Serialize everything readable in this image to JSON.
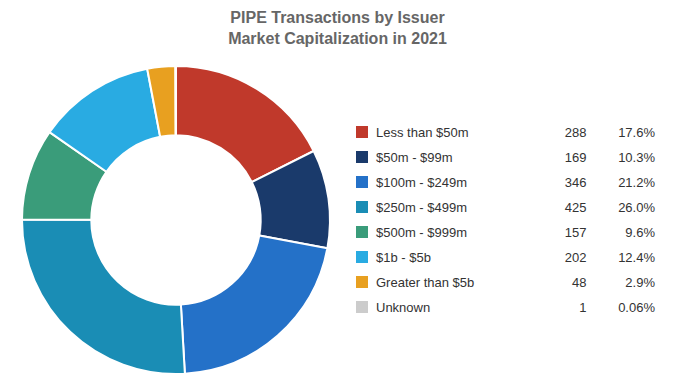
{
  "chart_data": {
    "type": "doughnut",
    "title": "PIPE Transactions by Issuer\nMarket Capitalization in 2021",
    "categories": [
      "Less than $50m",
      "$50m - $99m",
      "$100m - $249m",
      "$250m - $499m",
      "$500m - $999m",
      "$1b - $5b",
      "Greater than $5b",
      "Unknown"
    ],
    "values": [
      288,
      169,
      346,
      425,
      157,
      202,
      48,
      1
    ],
    "percentages": [
      17.6,
      10.3,
      21.2,
      26.0,
      9.6,
      12.4,
      2.9,
      0.06
    ],
    "percentage_labels": [
      "17.6%",
      "10.3%",
      "21.2%",
      "26.0%",
      "9.6%",
      "12.4%",
      "2.9%",
      "0.06%"
    ],
    "colors": [
      "#c0392b",
      "#1a3a6b",
      "#2471c8",
      "#1a8db5",
      "#3a9c7a",
      "#29abe2",
      "#e8a020",
      "#cccccc"
    ],
    "legend": "right"
  }
}
